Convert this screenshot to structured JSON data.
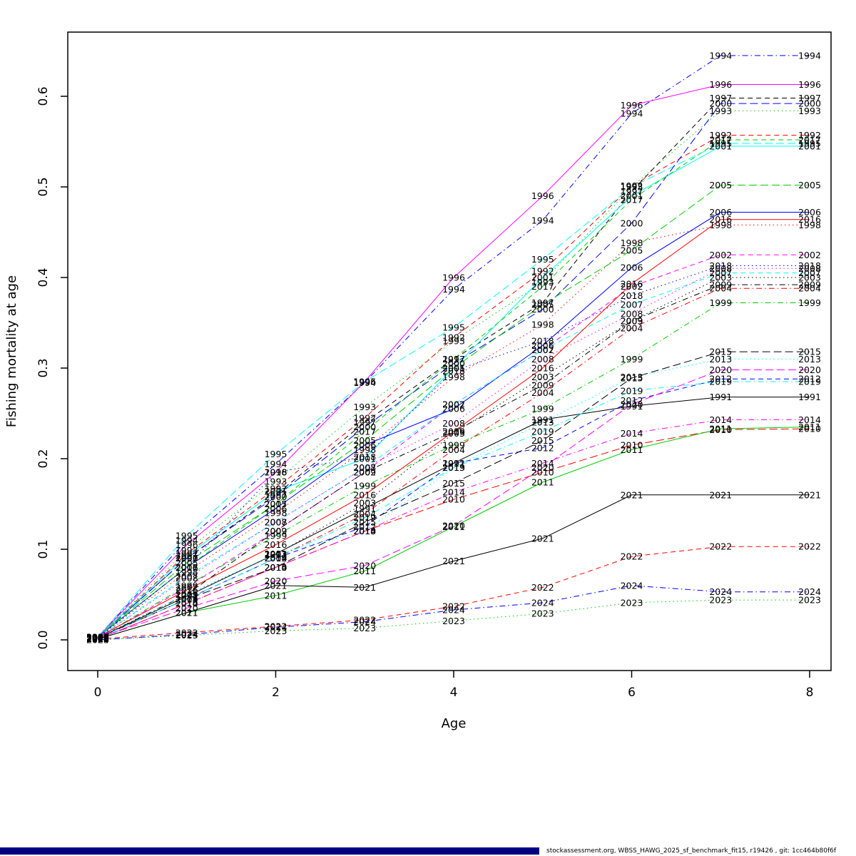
{
  "chart_data": {
    "type": "line",
    "title": "",
    "xlabel": "Age",
    "ylabel": "Fishing mortality at age",
    "xlim": [
      0,
      8
    ],
    "ylim": [
      0.0,
      0.65
    ],
    "x_ticks": [
      0,
      2,
      4,
      6,
      8
    ],
    "y_ticks": [
      "0.0",
      "0.1",
      "0.2",
      "0.3",
      "0.4",
      "0.5",
      "0.6"
    ],
    "ages": [
      0,
      1,
      2,
      3,
      4,
      5,
      6,
      7,
      8
    ],
    "grid": "off",
    "point_labels": "year printed at every data point in series color",
    "series": [
      {
        "name": "1991",
        "color": "#000000",
        "lty": 1,
        "values": [
          0.002,
          0.048,
          0.095,
          0.145,
          0.195,
          0.243,
          0.258,
          0.268,
          0.268
        ]
      },
      {
        "name": "1992",
        "color": "#FF0000",
        "lty": 2,
        "values": [
          0.003,
          0.095,
          0.167,
          0.245,
          0.334,
          0.407,
          0.501,
          0.557,
          0.557
        ]
      },
      {
        "name": "1993",
        "color": "#00CD00",
        "lty": 3,
        "values": [
          0.003,
          0.099,
          0.175,
          0.257,
          0.33,
          0.395,
          0.5,
          0.584,
          0.584
        ]
      },
      {
        "name": "1994",
        "color": "#0000FF",
        "lty": 4,
        "values": [
          0.003,
          0.11,
          0.194,
          0.284,
          0.387,
          0.463,
          0.581,
          0.645,
          0.645
        ]
      },
      {
        "name": "1995",
        "color": "#00FFFF",
        "lty": 5,
        "values": [
          0.003,
          0.115,
          0.205,
          0.285,
          0.345,
          0.42,
          0.5,
          0.548,
          0.548
        ]
      },
      {
        "name": "1996",
        "color": "#FF00FF",
        "lty": 1,
        "values": [
          0.003,
          0.105,
          0.185,
          0.285,
          0.4,
          0.49,
          0.59,
          0.613,
          0.613
        ]
      },
      {
        "name": "1997",
        "color": "#000000",
        "lty": 2,
        "values": [
          0.003,
          0.09,
          0.16,
          0.24,
          0.31,
          0.372,
          0.495,
          0.598,
          0.598
        ]
      },
      {
        "name": "1998",
        "color": "#FF0000",
        "lty": 3,
        "values": [
          0.003,
          0.075,
          0.14,
          0.21,
          0.29,
          0.348,
          0.438,
          0.458,
          0.458
        ]
      },
      {
        "name": "1999",
        "color": "#00CD00",
        "lty": 4,
        "values": [
          0.002,
          0.06,
          0.115,
          0.17,
          0.215,
          0.255,
          0.31,
          0.372,
          0.372
        ]
      },
      {
        "name": "2000",
        "color": "#0000FF",
        "lty": 5,
        "values": [
          0.003,
          0.09,
          0.158,
          0.235,
          0.305,
          0.365,
          0.46,
          0.592,
          0.592
        ]
      },
      {
        "name": "2001",
        "color": "#00FFFF",
        "lty": 1,
        "values": [
          0.003,
          0.093,
          0.164,
          0.2,
          0.3,
          0.4,
          0.49,
          0.545,
          0.545
        ]
      },
      {
        "name": "2002",
        "color": "#FF00FF",
        "lty": 2,
        "values": [
          0.002,
          0.058,
          0.12,
          0.185,
          0.26,
          0.32,
          0.39,
          0.425,
          0.425
        ]
      },
      {
        "name": "2003",
        "color": "#000000",
        "lty": 3,
        "values": [
          0.002,
          0.05,
          0.094,
          0.151,
          0.228,
          0.29,
          0.352,
          0.4,
          0.4
        ]
      },
      {
        "name": "2004",
        "color": "#FF0000",
        "lty": 4,
        "values": [
          0.002,
          0.045,
          0.09,
          0.139,
          0.21,
          0.273,
          0.344,
          0.388,
          0.388
        ]
      },
      {
        "name": "2005",
        "color": "#00CD00",
        "lty": 5,
        "values": [
          0.003,
          0.085,
          0.15,
          0.22,
          0.3,
          0.37,
          0.43,
          0.502,
          0.502
        ]
      },
      {
        "name": "2006",
        "color": "#0000FF",
        "lty": 1,
        "values": [
          0.003,
          0.08,
          0.145,
          0.215,
          0.255,
          0.325,
          0.411,
          0.472,
          0.472
        ]
      },
      {
        "name": "2007",
        "color": "#00FFFF",
        "lty": 2,
        "values": [
          0.002,
          0.07,
          0.13,
          0.19,
          0.26,
          0.32,
          0.37,
          0.405,
          0.405
        ]
      },
      {
        "name": "2008",
        "color": "#FF00FF",
        "lty": 3,
        "values": [
          0.002,
          0.068,
          0.13,
          0.19,
          0.239,
          0.31,
          0.36,
          0.41,
          0.41
        ]
      },
      {
        "name": "2009",
        "color": "#000000",
        "lty": 4,
        "values": [
          0.002,
          0.05,
          0.12,
          0.185,
          0.23,
          0.281,
          0.352,
          0.392,
          0.392
        ]
      },
      {
        "name": "2010",
        "color": "#FF0000",
        "lty": 5,
        "values": [
          0.001,
          0.04,
          0.08,
          0.12,
          0.155,
          0.185,
          0.215,
          0.232,
          0.233
        ]
      },
      {
        "name": "2011",
        "color": "#00CD00",
        "lty": 1,
        "values": [
          0.001,
          0.03,
          0.049,
          0.076,
          0.125,
          0.174,
          0.21,
          0.233,
          0.235
        ]
      },
      {
        "name": "2012",
        "color": "#0000FF",
        "lty": 2,
        "values": [
          0.002,
          0.045,
          0.09,
          0.125,
          0.195,
          0.212,
          0.264,
          0.288,
          0.288
        ]
      },
      {
        "name": "2013",
        "color": "#00FFFF",
        "lty": 3,
        "values": [
          0.002,
          0.05,
          0.095,
          0.12,
          0.19,
          0.24,
          0.29,
          0.31,
          0.31
        ]
      },
      {
        "name": "2014",
        "color": "#FF00FF",
        "lty": 4,
        "values": [
          0.001,
          0.04,
          0.08,
          0.12,
          0.163,
          0.195,
          0.228,
          0.243,
          0.243
        ]
      },
      {
        "name": "2015",
        "color": "#000000",
        "lty": 5,
        "values": [
          0.002,
          0.045,
          0.08,
          0.13,
          0.173,
          0.22,
          0.289,
          0.318,
          0.318
        ]
      },
      {
        "name": "2016",
        "color": "#FF0000",
        "lty": 1,
        "values": [
          0.003,
          0.055,
          0.105,
          0.16,
          0.23,
          0.3,
          0.393,
          0.464,
          0.464
        ]
      },
      {
        "name": "2017",
        "color": "#00CD00",
        "lty": 2,
        "values": [
          0.003,
          0.08,
          0.15,
          0.23,
          0.31,
          0.39,
          0.486,
          0.552,
          0.552
        ]
      },
      {
        "name": "2018",
        "color": "#0000FF",
        "lty": 3,
        "values": [
          0.002,
          0.08,
          0.185,
          0.202,
          0.297,
          0.33,
          0.38,
          0.413,
          0.413
        ]
      },
      {
        "name": "2019",
        "color": "#00FFFF",
        "lty": 4,
        "values": [
          0.002,
          0.045,
          0.09,
          0.135,
          0.19,
          0.23,
          0.275,
          0.285,
          0.285
        ]
      },
      {
        "name": "2020",
        "color": "#FF00FF",
        "lty": 5,
        "values": [
          0.002,
          0.035,
          0.065,
          0.082,
          0.126,
          0.19,
          0.26,
          0.298,
          0.298
        ]
      },
      {
        "name": "2021",
        "color": "#000000",
        "lty": 1,
        "values": [
          0.001,
          0.03,
          0.06,
          0.058,
          0.087,
          0.112,
          0.16,
          0.16,
          0.16
        ]
      },
      {
        "name": "2022",
        "color": "#FF0000",
        "lty": 2,
        "values": [
          0.001,
          0.008,
          0.015,
          0.022,
          0.037,
          0.058,
          0.092,
          0.103,
          0.103
        ]
      },
      {
        "name": "2023",
        "color": "#00CD00",
        "lty": 3,
        "values": [
          0.0,
          0.005,
          0.01,
          0.013,
          0.021,
          0.029,
          0.041,
          0.044,
          0.044
        ]
      },
      {
        "name": "2024",
        "color": "#0000FF",
        "lty": 4,
        "values": [
          0.0,
          0.006,
          0.014,
          0.02,
          0.033,
          0.041,
          0.06,
          0.053,
          0.053
        ]
      }
    ]
  },
  "footer": {
    "text": "stockassessment.org, WBSS_HAWG_2025_sf_benchmark_fit15, r19426 , git: 1cc464b80f6f",
    "bar_color": "#000080"
  }
}
